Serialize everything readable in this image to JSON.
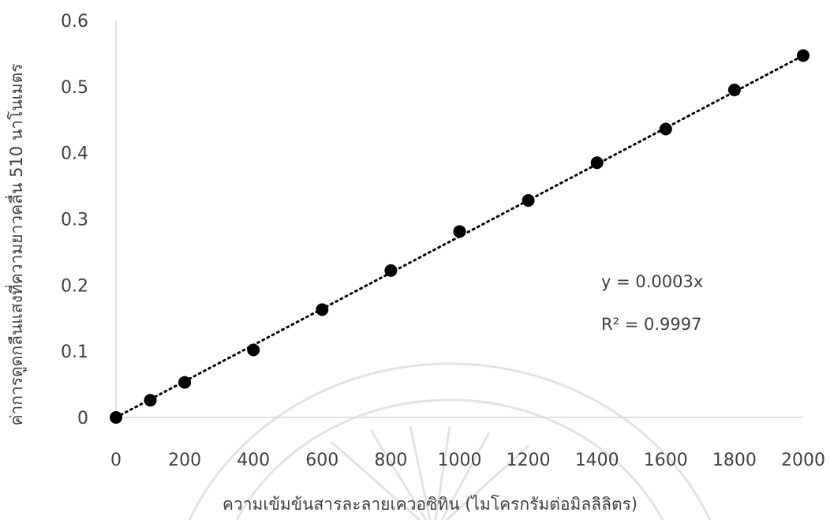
{
  "chart_data": {
    "type": "scatter",
    "x": [
      0,
      100,
      200,
      400,
      600,
      800,
      1000,
      1200,
      1400,
      1600,
      1800,
      2000
    ],
    "y": [
      0,
      0.026,
      0.053,
      0.102,
      0.163,
      0.222,
      0.281,
      0.328,
      0.385,
      0.436,
      0.495,
      0.547
    ],
    "xticks": [
      "0",
      "200",
      "400",
      "600",
      "800",
      "1000",
      "1200",
      "1400",
      "1600",
      "1800",
      "2000"
    ],
    "yticks": [
      "0",
      "0.1",
      "0.2",
      "0.3",
      "0.4",
      "0.5",
      "0.6"
    ],
    "xlabel": "ความเข้มข้นสารละลายเควอซิทิน (ไมโครกรัมต่อมิลลิลิตร)",
    "ylabel": "ค่าการดูดกลืนแสงที่ความยาวคลื่น 510 นาโนเมตร",
    "ylim": [
      0,
      0.6
    ],
    "trendline": {
      "type": "linear",
      "slope": 0.0003,
      "style": "dotted"
    },
    "annotations": {
      "equation": "y = 0.0003x",
      "r_squared": "R² = 0.9997"
    },
    "grid": false,
    "legend": "none",
    "colors": {
      "marker": "#000000",
      "axis": "#d9d9d9",
      "text": "#404040"
    }
  }
}
